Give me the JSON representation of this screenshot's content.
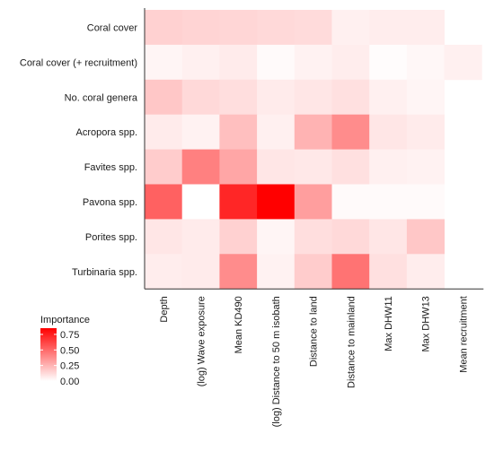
{
  "chart_data": {
    "type": "heatmap",
    "rows": [
      "Coral cover",
      "Coral cover (+ recruitment)",
      "No. coral genera",
      "Acropora spp.",
      "Favites spp.",
      "Pavona spp.",
      "Porites spp.",
      "Turbinaria spp."
    ],
    "columns": [
      "Depth",
      "(log) Wave exposure",
      "Mean KD490",
      "(log) Distance to 50 m isobath",
      "Distance to land",
      "Distance to mainland",
      "Max DHW11",
      "Max DHW13",
      "Mean recruitment"
    ],
    "values": [
      [
        0.18,
        0.17,
        0.16,
        0.15,
        0.14,
        0.06,
        0.07,
        0.07,
        null
      ],
      [
        0.04,
        0.06,
        0.08,
        0.02,
        0.05,
        0.07,
        0.01,
        0.03,
        0.06
      ],
      [
        0.22,
        0.15,
        0.13,
        0.08,
        0.1,
        0.12,
        0.06,
        0.04,
        null
      ],
      [
        0.08,
        0.05,
        0.25,
        0.06,
        0.3,
        0.45,
        0.1,
        0.08,
        null
      ],
      [
        0.2,
        0.5,
        0.35,
        0.1,
        0.09,
        0.12,
        0.06,
        0.05,
        null
      ],
      [
        0.62,
        0.0,
        0.85,
        1.0,
        0.38,
        0.02,
        0.02,
        0.02,
        null
      ],
      [
        0.1,
        0.08,
        0.18,
        0.04,
        0.13,
        0.15,
        0.1,
        0.22,
        null
      ],
      [
        0.07,
        0.08,
        0.45,
        0.05,
        0.2,
        0.55,
        0.12,
        0.07,
        null
      ]
    ],
    "legend": {
      "title": "Importance",
      "ticks": [
        "0.75",
        "0.50",
        "0.25",
        "0.00"
      ],
      "tick_values": [
        0.75,
        0.5,
        0.25,
        0.0
      ]
    },
    "colors": {
      "low": "#ffffff",
      "high": "#ff0000",
      "axis": "#333333"
    }
  }
}
